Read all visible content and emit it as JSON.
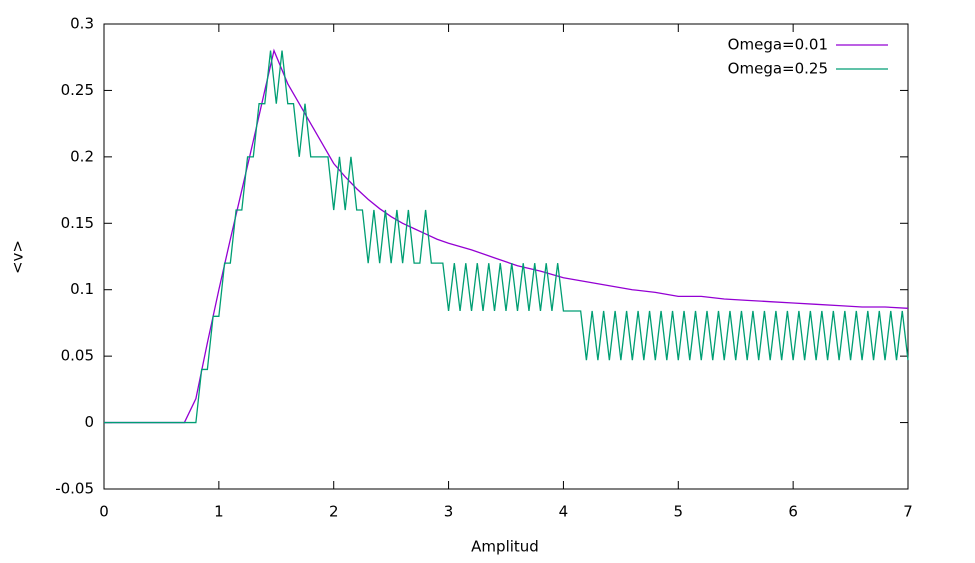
{
  "chart_data": {
    "type": "line",
    "xlabel": "Amplitud",
    "ylabel": "<v>",
    "xlim": [
      0,
      7
    ],
    "ylim": [
      -0.05,
      0.3
    ],
    "xticks": [
      0,
      1,
      2,
      3,
      4,
      5,
      6,
      7
    ],
    "yticks": [
      -0.05,
      0,
      0.05,
      0.1,
      0.15,
      0.2,
      0.25,
      0.3
    ],
    "legend": "top-right",
    "grid": false,
    "series": [
      {
        "name": "Omega=0.01",
        "color": "#9400d3",
        "x": [
          0,
          0.7,
          0.8,
          0.9,
          1.0,
          1.1,
          1.2,
          1.3,
          1.4,
          1.48,
          1.6,
          1.7,
          1.8,
          1.9,
          2.0,
          2.1,
          2.2,
          2.3,
          2.4,
          2.5,
          2.6,
          2.7,
          2.8,
          2.9,
          3.0,
          3.2,
          3.4,
          3.6,
          3.8,
          4.0,
          4.2,
          4.4,
          4.6,
          4.8,
          5.0,
          5.2,
          5.4,
          5.6,
          5.8,
          6.0,
          6.2,
          6.4,
          6.6,
          6.8,
          7.0
        ],
        "values": [
          0,
          0,
          0.018,
          0.06,
          0.1,
          0.138,
          0.175,
          0.212,
          0.25,
          0.28,
          0.255,
          0.24,
          0.225,
          0.21,
          0.195,
          0.185,
          0.176,
          0.168,
          0.161,
          0.155,
          0.15,
          0.146,
          0.142,
          0.138,
          0.135,
          0.13,
          0.124,
          0.118,
          0.114,
          0.109,
          0.106,
          0.103,
          0.1,
          0.098,
          0.095,
          0.095,
          0.093,
          0.092,
          0.091,
          0.09,
          0.089,
          0.088,
          0.087,
          0.087,
          0.086
        ]
      },
      {
        "name": "Omega=0.25",
        "color": "#009e73",
        "x": [
          0,
          0.05,
          0.1,
          0.15,
          0.2,
          0.25,
          0.3,
          0.35,
          0.4,
          0.45,
          0.5,
          0.55,
          0.6,
          0.65,
          0.7,
          0.75,
          0.8,
          0.85,
          0.9,
          0.95,
          1.0,
          1.05,
          1.1,
          1.15,
          1.2,
          1.25,
          1.3,
          1.35,
          1.4,
          1.45,
          1.5,
          1.55,
          1.6,
          1.65,
          1.7,
          1.75,
          1.8,
          1.85,
          1.9,
          1.95,
          2.0,
          2.05,
          2.1,
          2.15,
          2.2,
          2.25,
          2.3,
          2.35,
          2.4,
          2.45,
          2.5,
          2.55,
          2.6,
          2.65,
          2.7,
          2.75,
          2.8,
          2.85,
          2.9,
          2.95,
          3.0,
          3.05,
          3.1,
          3.15,
          3.2,
          3.25,
          3.3,
          3.35,
          3.4,
          3.45,
          3.5,
          3.55,
          3.6,
          3.65,
          3.7,
          3.75,
          3.8,
          3.85,
          3.9,
          3.95,
          4.0,
          4.05,
          4.1,
          4.15,
          4.2,
          4.25,
          4.3,
          4.35,
          4.4,
          4.45,
          4.5,
          4.55,
          4.6,
          4.65,
          4.7,
          4.75,
          4.8,
          4.85,
          4.9,
          4.95,
          5.0,
          5.05,
          5.1,
          5.15,
          5.2,
          5.25,
          5.3,
          5.35,
          5.4,
          5.45,
          5.5,
          5.55,
          5.6,
          5.65,
          5.7,
          5.75,
          5.8,
          5.85,
          5.9,
          5.95,
          6.0,
          6.05,
          6.1,
          6.15,
          6.2,
          6.25,
          6.3,
          6.35,
          6.4,
          6.45,
          6.5,
          6.55,
          6.6,
          6.65,
          6.7,
          6.75,
          6.8,
          6.85,
          6.9,
          6.95,
          7.0
        ],
        "values": [
          0,
          0,
          0,
          0,
          0,
          0,
          0,
          0,
          0,
          0,
          0,
          0,
          0,
          0,
          0,
          0,
          0,
          0.04,
          0.04,
          0.08,
          0.08,
          0.12,
          0.12,
          0.16,
          0.16,
          0.2,
          0.2,
          0.24,
          0.24,
          0.28,
          0.24,
          0.28,
          0.24,
          0.24,
          0.2,
          0.24,
          0.2,
          0.2,
          0.2,
          0.2,
          0.16,
          0.2,
          0.16,
          0.2,
          0.16,
          0.16,
          0.12,
          0.16,
          0.12,
          0.16,
          0.12,
          0.16,
          0.12,
          0.16,
          0.12,
          0.12,
          0.16,
          0.12,
          0.12,
          0.12,
          0.084,
          0.12,
          0.084,
          0.12,
          0.084,
          0.12,
          0.084,
          0.12,
          0.084,
          0.12,
          0.084,
          0.12,
          0.084,
          0.12,
          0.084,
          0.12,
          0.084,
          0.12,
          0.084,
          0.12,
          0.084,
          0.084,
          0.084,
          0.084,
          0.047,
          0.084,
          0.047,
          0.084,
          0.047,
          0.084,
          0.047,
          0.084,
          0.047,
          0.084,
          0.047,
          0.084,
          0.047,
          0.084,
          0.047,
          0.084,
          0.047,
          0.084,
          0.047,
          0.084,
          0.047,
          0.084,
          0.047,
          0.084,
          0.047,
          0.084,
          0.047,
          0.084,
          0.047,
          0.084,
          0.047,
          0.084,
          0.047,
          0.084,
          0.047,
          0.084,
          0.047,
          0.084,
          0.047,
          0.084,
          0.047,
          0.084,
          0.047,
          0.084,
          0.047,
          0.084,
          0.047,
          0.084,
          0.047,
          0.084,
          0.047,
          0.084,
          0.047,
          0.084,
          0.047,
          0.084,
          0.047
        ]
      }
    ]
  }
}
